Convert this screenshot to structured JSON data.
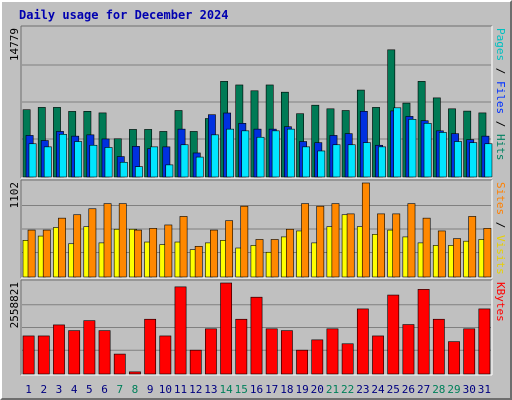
{
  "chart_data": {
    "type": "bar",
    "title": "Daily usage for December 2024",
    "categories": [
      "1",
      "2",
      "3",
      "4",
      "5",
      "6",
      "7",
      "8",
      "9",
      "10",
      "11",
      "12",
      "13",
      "14",
      "15",
      "16",
      "17",
      "18",
      "19",
      "20",
      "21",
      "22",
      "23",
      "24",
      "25",
      "26",
      "27",
      "28",
      "29",
      "30",
      "31"
    ],
    "weekend_days": [
      "7",
      "8",
      "14",
      "15",
      "21",
      "22",
      "28",
      "29"
    ],
    "panels": [
      {
        "id": "hits-panel",
        "max_label": "14779",
        "ymax": 14779,
        "legend": [
          {
            "text": "Pages",
            "color": "#00c0c0"
          },
          {
            "text": " / ",
            "color": "#000000"
          },
          {
            "text": "Files",
            "color": "#0030ff"
          },
          {
            "text": " / ",
            "color": "#000000"
          },
          {
            "text": "Hits",
            "color": "#008060"
          }
        ],
        "series": [
          {
            "name": "Hits",
            "color": "#007a55",
            "values": [
              6720,
              6950,
              6950,
              6550,
              6560,
              6400,
              3820,
              4750,
              4750,
              4550,
              6640,
              4550,
              5840,
              9550,
              9190,
              8610,
              9190,
              8470,
              6320,
              7170,
              6810,
              6640,
              8680,
              6950,
              12700,
              7380,
              9550,
              7900,
              6810,
              6580,
              6400
            ]
          },
          {
            "name": "Files",
            "color": "#0030e0",
            "values": [
              4150,
              3640,
              4550,
              4080,
              4210,
              3800,
              2040,
              3060,
              2830,
              3010,
              4780,
              2400,
              6220,
              6390,
              5360,
              4780,
              4780,
              5020,
              3540,
              3430,
              4150,
              4330,
              6560,
              3170,
              6600,
              6050,
              5620,
              4610,
              4330,
              3730,
              4080
            ]
          },
          {
            "name": "Pages",
            "color": "#00e6ff",
            "values": [
              3320,
              3010,
              4260,
              3540,
              3170,
              2950,
              1470,
              1030,
              3010,
              1210,
              3220,
              1990,
              4210,
              4780,
              4610,
              3970,
              4610,
              4780,
              3010,
              2600,
              3220,
              3220,
              3430,
              3010,
              6910,
              5760,
              5360,
              4450,
              3540,
              3430,
              3320
            ]
          }
        ]
      },
      {
        "id": "visits-panel",
        "max_label": "1102",
        "ymax": 1102,
        "legend": [
          {
            "text": "Sites",
            "color": "#ff8000"
          },
          {
            "text": " / ",
            "color": "#000000"
          },
          {
            "text": "Visits",
            "color": "#e8d000"
          }
        ],
        "series": [
          {
            "name": "Visits",
            "color": "#ffff00",
            "values": [
              430,
              480,
              580,
              390,
              590,
              400,
              560,
              560,
              410,
              380,
              410,
              320,
              400,
              430,
              340,
              370,
              290,
              470,
              540,
              400,
              590,
              730,
              590,
              500,
              550,
              470,
              400,
              370,
              370,
              420,
              440
            ]
          },
          {
            "name": "Sites",
            "color": "#ff8800",
            "values": [
              550,
              550,
              690,
              730,
              800,
              860,
              860,
              550,
              570,
              610,
              710,
              360,
              550,
              660,
              830,
              440,
              440,
              560,
              860,
              830,
              860,
              740,
              1102,
              740,
              740,
              860,
              690,
              540,
              450,
              710,
              570
            ]
          }
        ]
      },
      {
        "id": "kbytes-panel",
        "max_label": "2558821",
        "ymax": 2558821,
        "legend": [
          {
            "text": "KBytes",
            "color": "#ff0000"
          }
        ],
        "series": [
          {
            "name": "KBytes",
            "color": "#ff0000",
            "values": [
              1070000,
              1070000,
              1380000,
              1220000,
              1500000,
              1220000,
              560000,
              60000,
              1540000,
              1070000,
              2450000,
              670000,
              1270000,
              2600000,
              1540000,
              2160000,
              1270000,
              1220000,
              670000,
              960000,
              1270000,
              850000,
              1830000,
              1070000,
              2220000,
              1390000,
              2380000,
              1540000,
              910000,
              1270000,
              1830000
            ]
          }
        ]
      }
    ]
  }
}
